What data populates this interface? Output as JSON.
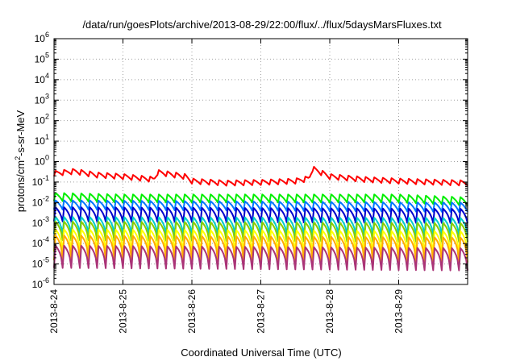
{
  "chart_data": {
    "type": "line",
    "title": "/data/run/goesPlots/archive/2013-08-29/22:00/flux/../flux/5daysMarsFluxes.txt",
    "xlabel": "Coordinated Universal Time (UTC)",
    "ylabel_main": "protons/cm",
    "ylabel_sup": "2",
    "ylabel_tail": "-s-sr-MeV",
    "yscale": "log",
    "ylim_exp": [
      -6,
      6
    ],
    "ytick_exponents": [
      -6,
      -5,
      -4,
      -3,
      -2,
      -1,
      0,
      1,
      2,
      3,
      4,
      5,
      6
    ],
    "ytick_base": "10",
    "xlim_days": [
      0,
      6
    ],
    "xticks": [
      {
        "day": 0,
        "label": "2013-8-24"
      },
      {
        "day": 1,
        "label": "2013-8-25"
      },
      {
        "day": 2,
        "label": "2013-8-26"
      },
      {
        "day": 3,
        "label": "2013-8-27"
      },
      {
        "day": 4,
        "label": "2013-8-28"
      },
      {
        "day": 5,
        "label": "2013-8-29"
      }
    ],
    "grid": true,
    "period_days": 0.125,
    "series": [
      {
        "color": "#ff0000",
        "base": [
          [
            0,
            0.35
          ],
          [
            0.3,
            0.45
          ],
          [
            0.6,
            0.3
          ],
          [
            1.0,
            0.25
          ],
          [
            1.45,
            0.18
          ],
          [
            1.5,
            0.4
          ],
          [
            1.9,
            0.25
          ],
          [
            2.0,
            0.15
          ],
          [
            2.5,
            0.12
          ],
          [
            3.0,
            0.13
          ],
          [
            3.5,
            0.15
          ],
          [
            3.7,
            0.2
          ],
          [
            3.75,
            0.6
          ],
          [
            4.0,
            0.25
          ],
          [
            4.5,
            0.18
          ],
          [
            5.0,
            0.15
          ],
          [
            6.0,
            0.12
          ]
        ],
        "dip": 0.55
      },
      {
        "color": "#00ee00",
        "base": [
          [
            0,
            0.03
          ],
          [
            1.0,
            0.025
          ],
          [
            2.0,
            0.025
          ],
          [
            3.0,
            0.025
          ],
          [
            4.0,
            0.025
          ],
          [
            5.0,
            0.025
          ],
          [
            6.0,
            0.018
          ]
        ],
        "dip": 0.4
      },
      {
        "color": "#0077ff",
        "base": [
          [
            0,
            0.013
          ],
          [
            6.0,
            0.01
          ]
        ],
        "dip": 0.35
      },
      {
        "color": "#0000cc",
        "base": [
          [
            0,
            0.006
          ],
          [
            6.0,
            0.005
          ]
        ],
        "dip": 0.2
      },
      {
        "color": "#00cccc",
        "base": [
          [
            0,
            0.002
          ],
          [
            6.0,
            0.0018
          ]
        ],
        "dip": 0.15
      },
      {
        "color": "#88cc00",
        "base": [
          [
            0,
            0.0012
          ],
          [
            6.0,
            0.001
          ]
        ],
        "dip": 0.12
      },
      {
        "color": "#ffff00",
        "base": [
          [
            0,
            0.0005
          ],
          [
            6.0,
            0.0004
          ]
        ],
        "dip": 0.08
      },
      {
        "color": "#ffaa00",
        "base": [
          [
            0,
            0.00025
          ],
          [
            6.0,
            0.0002
          ]
        ],
        "dip": 0.06
      },
      {
        "color": "#aa3377",
        "base": [
          [
            0,
            8e-05
          ],
          [
            6.0,
            6e-05
          ]
        ],
        "dip": 0.08
      }
    ]
  }
}
